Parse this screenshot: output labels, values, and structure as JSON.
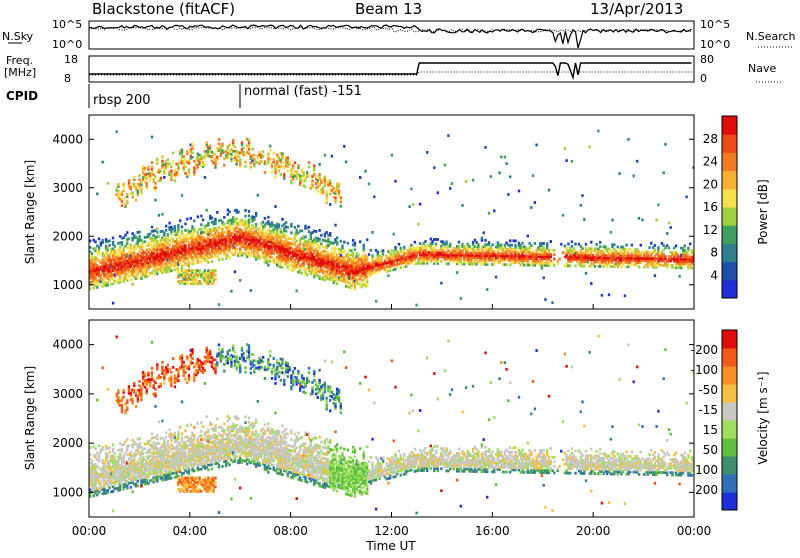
{
  "header": {
    "station": "Blackstone (fitACF)",
    "beam": "Beam 13",
    "date": "13/Apr/2013"
  },
  "top_panels": {
    "nsky_label": "N.Sky",
    "nsky_ticks": [
      "10^5",
      "10^0"
    ],
    "nsearch_label": "N.Search",
    "nsearch_ticks": [
      "10^5",
      "10^0"
    ],
    "freq_label": "Freq.",
    "freq_unit": "[MHz]",
    "freq_ticks": [
      "18",
      "8"
    ],
    "nave_label": "Nave",
    "nave_ticks": [
      "80",
      "0"
    ],
    "cpid_label": "CPID",
    "cpid_segments": [
      {
        "name": "rbsp 200",
        "start": "00:00",
        "end": "06:00"
      },
      {
        "name": "normal (fast) -151",
        "start": "06:00",
        "end": "24:00"
      }
    ]
  },
  "chart_data": [
    {
      "type": "heatmap",
      "title": "",
      "xlabel": "Time UT",
      "ylabel": "Slant Range [km]",
      "x_ticks": [
        "00:00",
        "04:00",
        "08:00",
        "12:00",
        "16:00",
        "20:00",
        "00:00"
      ],
      "y_ticks": [
        "1000",
        "2000",
        "3000",
        "4000"
      ],
      "ylim": [
        500,
        4500
      ],
      "colorbar": {
        "label": "Power [dB]",
        "ticks": [
          "4",
          "8",
          "12",
          "16",
          "20",
          "24",
          "28"
        ],
        "colors": [
          "#1f2fd8",
          "#1f4ea8",
          "#2f7f8f",
          "#3f9f5f",
          "#9fcf3f",
          "#f7e04a",
          "#f7b030",
          "#f27a20",
          "#ee4a18",
          "#e00c0c"
        ]
      },
      "features": [
        {
          "label": "main band",
          "time_hours": [
            0,
            6,
            10.5,
            13,
            24
          ],
          "range_km": [
            1300,
            2000,
            1300,
            1650,
            1550
          ]
        }
      ]
    },
    {
      "type": "heatmap",
      "title": "",
      "xlabel": "Time UT",
      "ylabel": "Slant Range [km]",
      "x_ticks": [
        "00:00",
        "04:00",
        "08:00",
        "12:00",
        "16:00",
        "20:00",
        "00:00"
      ],
      "y_ticks": [
        "1000",
        "2000",
        "3000",
        "4000"
      ],
      "ylim": [
        500,
        4500
      ],
      "colorbar": {
        "label": "Velocity [m s⁻¹]",
        "ticks": [
          "200",
          "100",
          "50",
          "15",
          "-15",
          "-50",
          "-100",
          "-200"
        ],
        "colors": [
          "#1f2fd8",
          "#2f6fb8",
          "#3f8f6f",
          "#5fbf3f",
          "#9fdf5f",
          "#c8c8c0",
          "#f7c040",
          "#f79020",
          "#f25a18",
          "#e00c0c"
        ]
      }
    }
  ]
}
